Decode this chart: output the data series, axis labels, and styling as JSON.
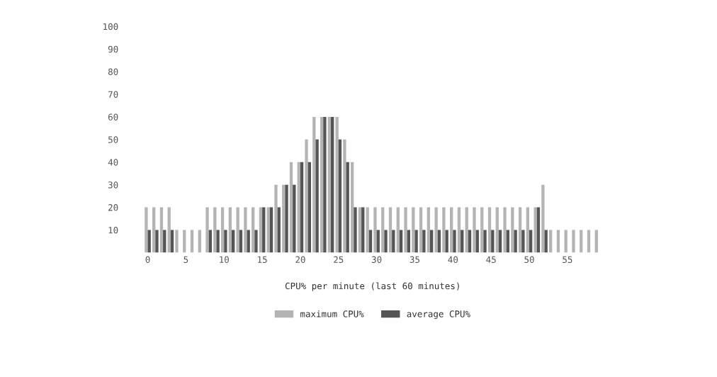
{
  "chart_data": {
    "type": "bar",
    "xlabel": "CPU% per minute (last 60 minutes)",
    "categories": [
      "0",
      null,
      null,
      null,
      null,
      "5",
      null,
      null,
      null,
      null,
      "10",
      null,
      null,
      null,
      null,
      "15",
      null,
      null,
      null,
      null,
      "20",
      null,
      null,
      null,
      null,
      "25",
      null,
      null,
      null,
      null,
      "30",
      null,
      null,
      null,
      null,
      "35",
      null,
      null,
      null,
      null,
      "40",
      null,
      null,
      null,
      null,
      "45",
      null,
      null,
      null,
      null,
      "50",
      null,
      null,
      null,
      null,
      "55",
      null,
      null,
      null,
      null
    ],
    "series": [
      {
        "name": "maximum CPU%",
        "color": "#b4b4b4",
        "values": [
          20,
          20,
          20,
          20,
          10,
          10,
          10,
          10,
          20,
          20,
          20,
          20,
          20,
          20,
          20,
          20,
          20,
          30,
          30,
          40,
          40,
          50,
          60,
          60,
          60,
          60,
          50,
          40,
          20,
          20,
          20,
          20,
          20,
          20,
          20,
          20,
          20,
          20,
          20,
          20,
          20,
          20,
          20,
          20,
          20,
          20,
          20,
          20,
          20,
          20,
          20,
          20,
          30,
          10,
          10,
          10,
          10,
          10,
          10,
          10
        ]
      },
      {
        "name": "average CPU%",
        "color": "#555555",
        "values": [
          10,
          10,
          10,
          10,
          null,
          null,
          null,
          null,
          10,
          10,
          10,
          10,
          10,
          10,
          10,
          20,
          20,
          20,
          30,
          30,
          40,
          40,
          50,
          60,
          60,
          50,
          40,
          20,
          20,
          10,
          10,
          10,
          10,
          10,
          10,
          10,
          10,
          10,
          10,
          10,
          10,
          10,
          10,
          10,
          10,
          10,
          10,
          10,
          10,
          10,
          10,
          20,
          10,
          null,
          null,
          null,
          null,
          null,
          null,
          null
        ]
      }
    ],
    "ylim": [
      0,
      100
    ],
    "yticks": [
      10,
      20,
      30,
      40,
      50,
      60,
      70,
      80,
      90,
      100
    ],
    "grid": false,
    "legend": "bottom"
  }
}
